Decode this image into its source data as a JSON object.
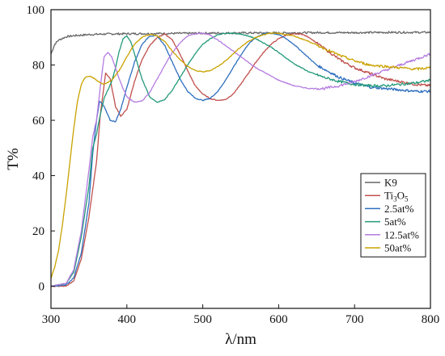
{
  "chart_data": {
    "type": "line",
    "title": "",
    "xlabel": "λ/nm",
    "ylabel": "T%",
    "xlim": [
      300,
      800
    ],
    "ylim": [
      -8,
      100
    ],
    "xticks": [
      300,
      400,
      500,
      600,
      700,
      800
    ],
    "yticks": [
      0,
      20,
      40,
      60,
      80,
      100
    ],
    "grid": false,
    "legend_position": "right",
    "series": [
      {
        "name": "K9",
        "legend_main": "K9",
        "legend_sub": "",
        "legend_after": "",
        "color": "#666666",
        "x": [
          300,
          305,
          310,
          320,
          330,
          340,
          350,
          370,
          400,
          450,
          500,
          550,
          600,
          650,
          700,
          750,
          800
        ],
        "y": [
          84,
          87.5,
          89,
          90.2,
          90.6,
          90.8,
          91.0,
          91.2,
          91.3,
          91.4,
          91.5,
          91.6,
          91.6,
          91.7,
          91.7,
          91.8,
          91.8
        ]
      },
      {
        "name": "Ti3O5",
        "legend_main": "Ti",
        "legend_sub": "3",
        "legend_after": "O",
        "legend_sub2": "5",
        "color": "#c0504d",
        "x": [
          300,
          320,
          330,
          340,
          350,
          360,
          365,
          372,
          378,
          385,
          392,
          400,
          410,
          420,
          430,
          440,
          450,
          460,
          470,
          480,
          490,
          500,
          510,
          520,
          530,
          540,
          550,
          560,
          570,
          580,
          590,
          600,
          610,
          620,
          630,
          640,
          650,
          660,
          670,
          680,
          700,
          720,
          740,
          760,
          780,
          800
        ],
        "y": [
          0,
          0,
          2,
          10,
          25,
          45,
          62,
          77,
          75,
          65,
          61.5,
          64,
          74,
          82,
          87,
          90,
          91.2,
          89,
          84,
          78,
          72.5,
          69.5,
          67.8,
          67.2,
          67.5,
          69.5,
          73,
          77,
          81,
          84.5,
          87.5,
          89.5,
          90.8,
          91.2,
          91.2,
          90,
          88,
          86,
          84,
          82,
          79,
          77,
          75,
          74,
          73,
          72.5
        ]
      },
      {
        "name": "2.5at%",
        "legend_main": "2.5at%",
        "legend_sub": "",
        "legend_after": "",
        "color": "#2e6fbf",
        "x": [
          300,
          320,
          330,
          340,
          350,
          355,
          360,
          364,
          370,
          378,
          385,
          392,
          400,
          410,
          420,
          430,
          440,
          450,
          460,
          470,
          480,
          490,
          500,
          510,
          520,
          530,
          540,
          550,
          560,
          570,
          580,
          590,
          600,
          610,
          620,
          630,
          640,
          650,
          660,
          670,
          680,
          700,
          720,
          740,
          760,
          780,
          800
        ],
        "y": [
          0,
          0.5,
          3,
          12,
          30,
          48,
          60,
          67,
          65,
          60,
          59.5,
          64,
          72,
          81,
          87.5,
          90.5,
          90.5,
          87,
          81,
          75,
          70.5,
          68,
          67.2,
          68,
          70.5,
          74.5,
          79,
          83.5,
          87.5,
          90,
          91.3,
          91.5,
          91,
          89.5,
          87.5,
          85,
          82.5,
          80,
          78.5,
          77,
          75.5,
          73.5,
          72,
          71.5,
          71,
          70.5,
          70.5
        ]
      },
      {
        "name": "5at%",
        "legend_main": "5at%",
        "legend_sub": "",
        "legend_after": "",
        "color": "#22997a",
        "x": [
          300,
          320,
          330,
          340,
          350,
          355,
          360,
          365,
          370,
          375,
          380,
          385,
          390,
          395,
          400,
          405,
          410,
          420,
          430,
          440,
          450,
          460,
          470,
          480,
          490,
          500,
          510,
          520,
          530,
          540,
          550,
          560,
          570,
          580,
          590,
          600,
          610,
          620,
          630,
          640,
          660,
          680,
          700,
          720,
          740,
          760,
          780,
          800
        ],
        "y": [
          0,
          1,
          5,
          18,
          36,
          50,
          55,
          62,
          68,
          71,
          74,
          79,
          85,
          89.5,
          90.5,
          88.5,
          84,
          75,
          68.5,
          66.5,
          67.5,
          71,
          75.5,
          80,
          84,
          87.5,
          89.5,
          91,
          91.5,
          91.5,
          91.2,
          90.5,
          89.5,
          88,
          86.5,
          84.5,
          82.5,
          80.5,
          79,
          77.5,
          75.5,
          74,
          73,
          72.5,
          72.5,
          73,
          73.5,
          74.5
        ]
      },
      {
        "name": "12.5at%",
        "legend_main": "12.5at%",
        "legend_sub": "",
        "legend_after": "",
        "color": "#b57be0",
        "x": [
          300,
          320,
          330,
          340,
          350,
          355,
          360,
          365,
          370,
          375,
          380,
          385,
          390,
          395,
          400,
          410,
          420,
          430,
          440,
          450,
          460,
          470,
          480,
          490,
          500,
          510,
          520,
          530,
          540,
          550,
          560,
          570,
          580,
          590,
          600,
          620,
          640,
          660,
          680,
          700,
          720,
          740,
          760,
          780,
          800
        ],
        "y": [
          0,
          1,
          6,
          20,
          42,
          54,
          60,
          72,
          83,
          84.5,
          83,
          79,
          75,
          71.5,
          68.5,
          66.5,
          67,
          70,
          75,
          80,
          84.5,
          88,
          90.5,
          91.3,
          91.5,
          90.8,
          89,
          87,
          85,
          83,
          81,
          79,
          77.5,
          76,
          74.5,
          72.5,
          71.5,
          71.5,
          72.5,
          74,
          76,
          78,
          80,
          82,
          84
        ]
      },
      {
        "name": "50at%",
        "legend_main": "50at%",
        "legend_sub": "",
        "legend_after": "",
        "color": "#c9a200",
        "x": [
          300,
          305,
          310,
          315,
          320,
          325,
          330,
          335,
          340,
          345,
          350,
          355,
          360,
          365,
          370,
          380,
          390,
          400,
          410,
          420,
          430,
          440,
          450,
          460,
          470,
          480,
          490,
          500,
          510,
          520,
          530,
          540,
          550,
          560,
          570,
          580,
          590,
          600,
          620,
          640,
          660,
          680,
          700,
          720,
          740,
          760,
          780,
          800
        ],
        "y": [
          3,
          7,
          13,
          22,
          33,
          45,
          57,
          67,
          73,
          75.5,
          76,
          75.5,
          74.5,
          73.5,
          73,
          74.5,
          78,
          83,
          87.5,
          90,
          91,
          90.5,
          88.5,
          85,
          82,
          79.5,
          78,
          77.5,
          78,
          79.5,
          81.5,
          84,
          86.5,
          88.5,
          90,
          91,
          91.5,
          91.5,
          90.5,
          88.5,
          86,
          83.5,
          81.5,
          80,
          79.5,
          79,
          78.5,
          79
        ]
      }
    ]
  }
}
